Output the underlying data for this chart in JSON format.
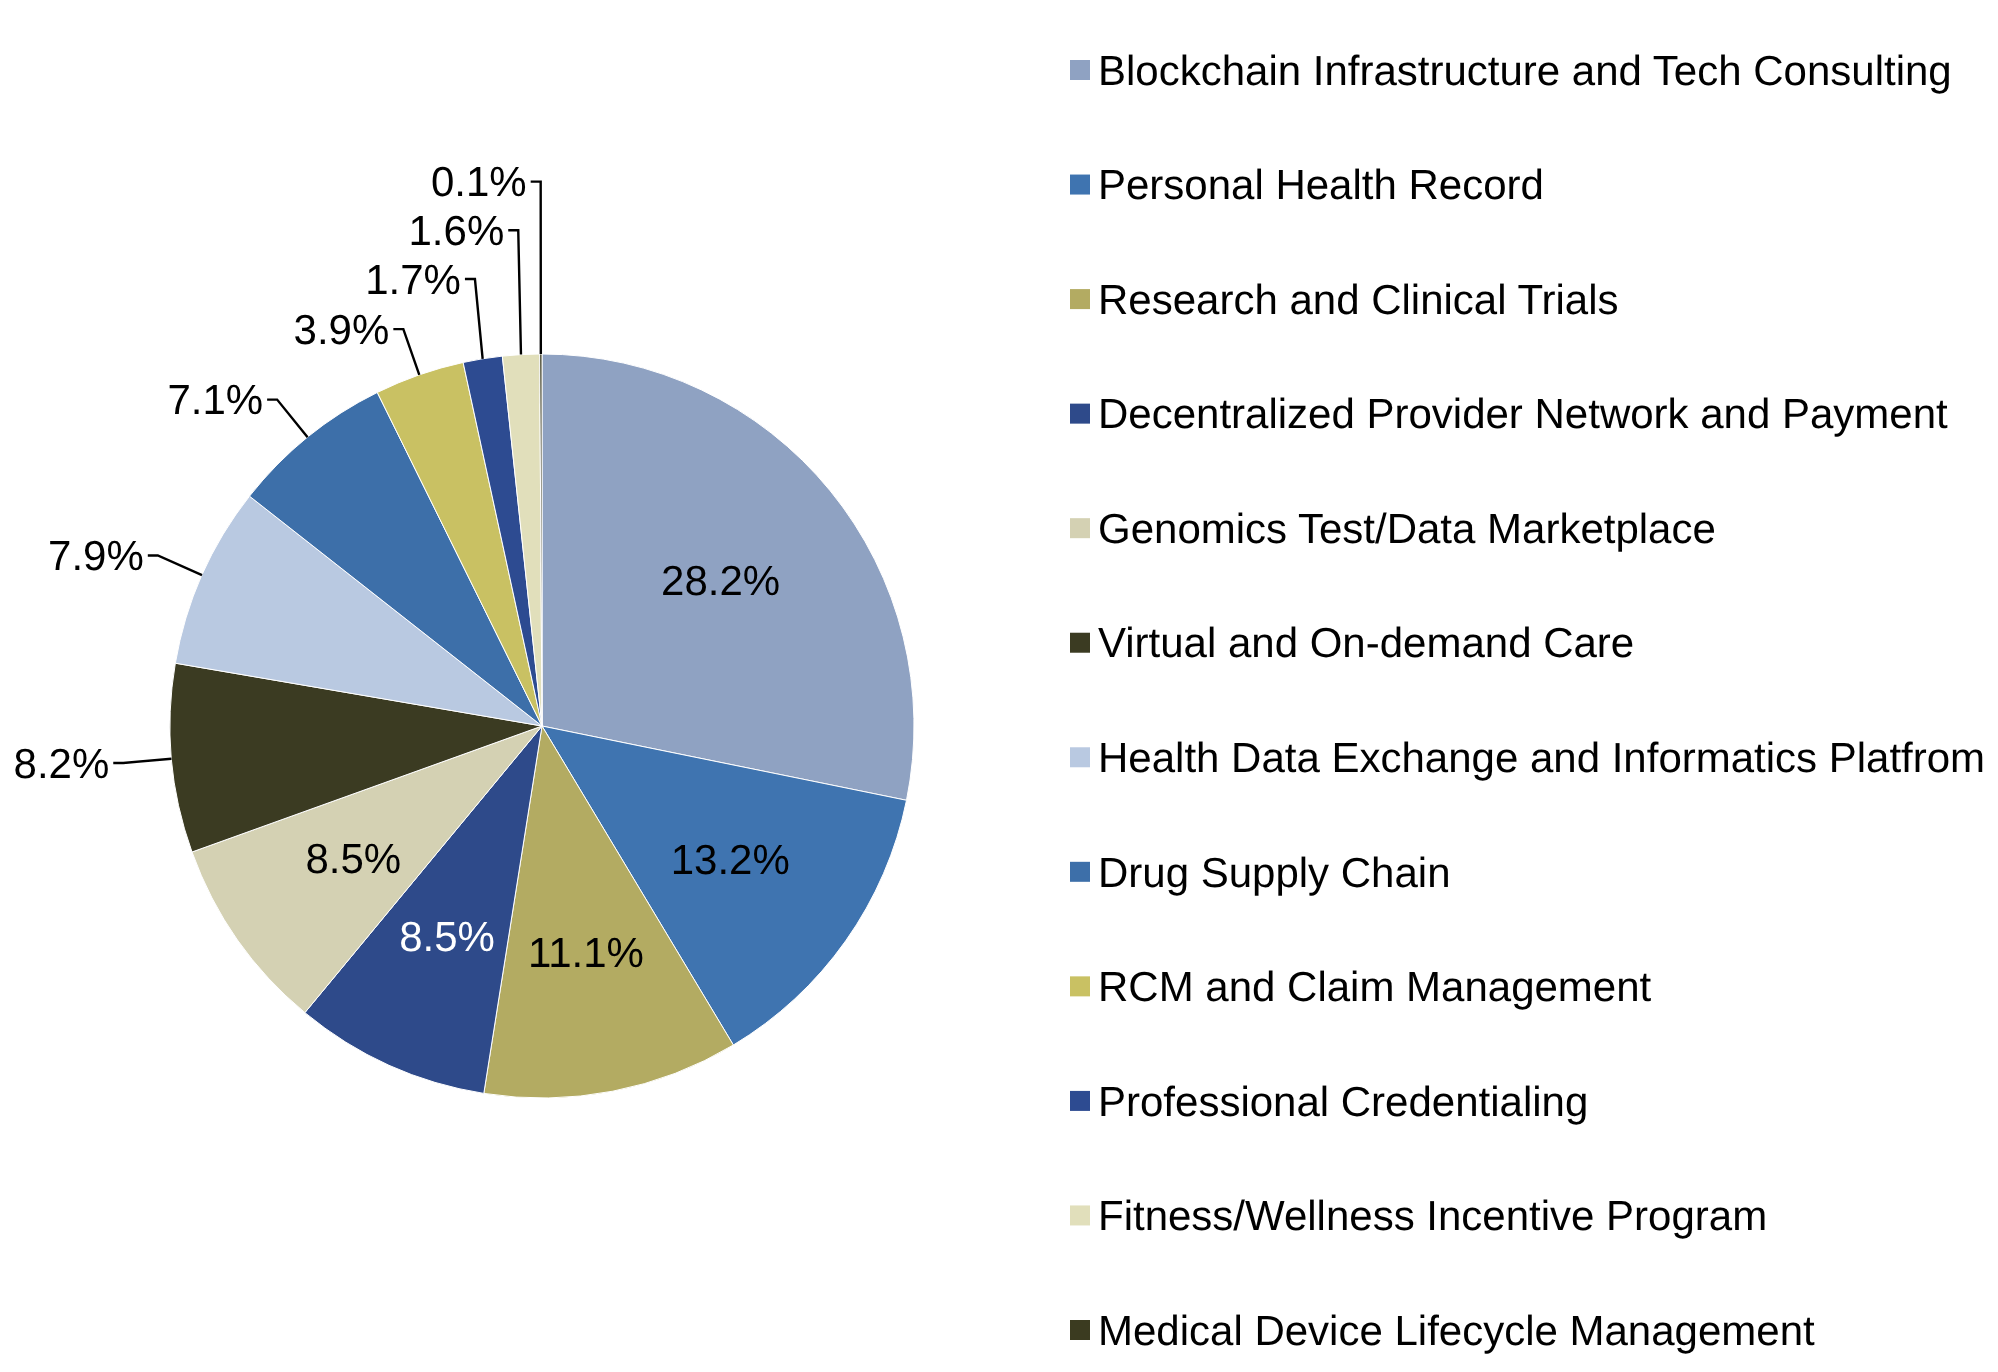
{
  "chart_data": {
    "type": "pie",
    "categories": [
      "Blockchain Infrastructure and Tech Consulting",
      "Personal Health Record",
      "Research and Clinical Trials",
      "Decentralized Provider Network and Payment",
      "Genomics Test/Data Marketplace",
      "Virtual and On-demand Care",
      "Health Data Exchange and Informatics Platfrom",
      "Drug Supply Chain",
      "RCM and Claim Management",
      "Professional Credentialing",
      "Fitness/Wellness Incentive Program",
      "Medical Device Lifecycle Management"
    ],
    "values": [
      28.2,
      13.2,
      11.1,
      8.5,
      8.5,
      8.2,
      7.9,
      7.1,
      3.9,
      1.7,
      1.6,
      0.1
    ],
    "colors": [
      "#8fa2c2",
      "#3f74b0",
      "#b3ab62",
      "#2e4a8a",
      "#d4d1b3",
      "#3b3b22",
      "#b9c9e1",
      "#3d6fa9",
      "#c9c163",
      "#2d4b91",
      "#e1dfbb",
      "#3b3b20"
    ],
    "value_labels": [
      "28.2%",
      "13.2%",
      "11.1%",
      "8.5%",
      "8.5%",
      "8.2%",
      "7.9%",
      "7.1%",
      "3.9%",
      "1.7%",
      "1.6%",
      "0.1%"
    ],
    "legend": "right"
  }
}
